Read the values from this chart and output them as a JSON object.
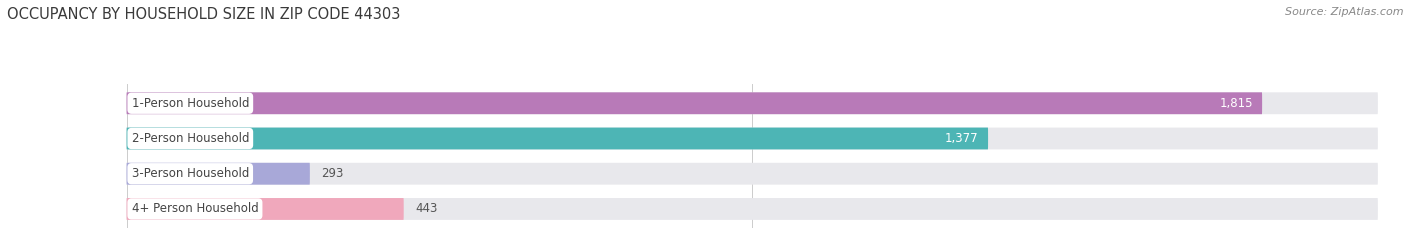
{
  "title": "OCCUPANCY BY HOUSEHOLD SIZE IN ZIP CODE 44303",
  "source": "Source: ZipAtlas.com",
  "categories": [
    "1-Person Household",
    "2-Person Household",
    "3-Person Household",
    "4+ Person Household"
  ],
  "values": [
    1815,
    1377,
    293,
    443
  ],
  "bar_colors": [
    "#b87ab8",
    "#4db5b5",
    "#a8a8d8",
    "#f0a8bc"
  ],
  "xlim": [
    0,
    2000
  ],
  "xticks": [
    0,
    1000,
    2000
  ],
  "background_color": "#ffffff",
  "bar_bg_color": "#e8e8ec",
  "title_fontsize": 10.5,
  "source_fontsize": 8,
  "label_fontsize": 8.5,
  "value_fontsize": 8.5,
  "figsize": [
    14.06,
    2.33
  ],
  "dpi": 100
}
